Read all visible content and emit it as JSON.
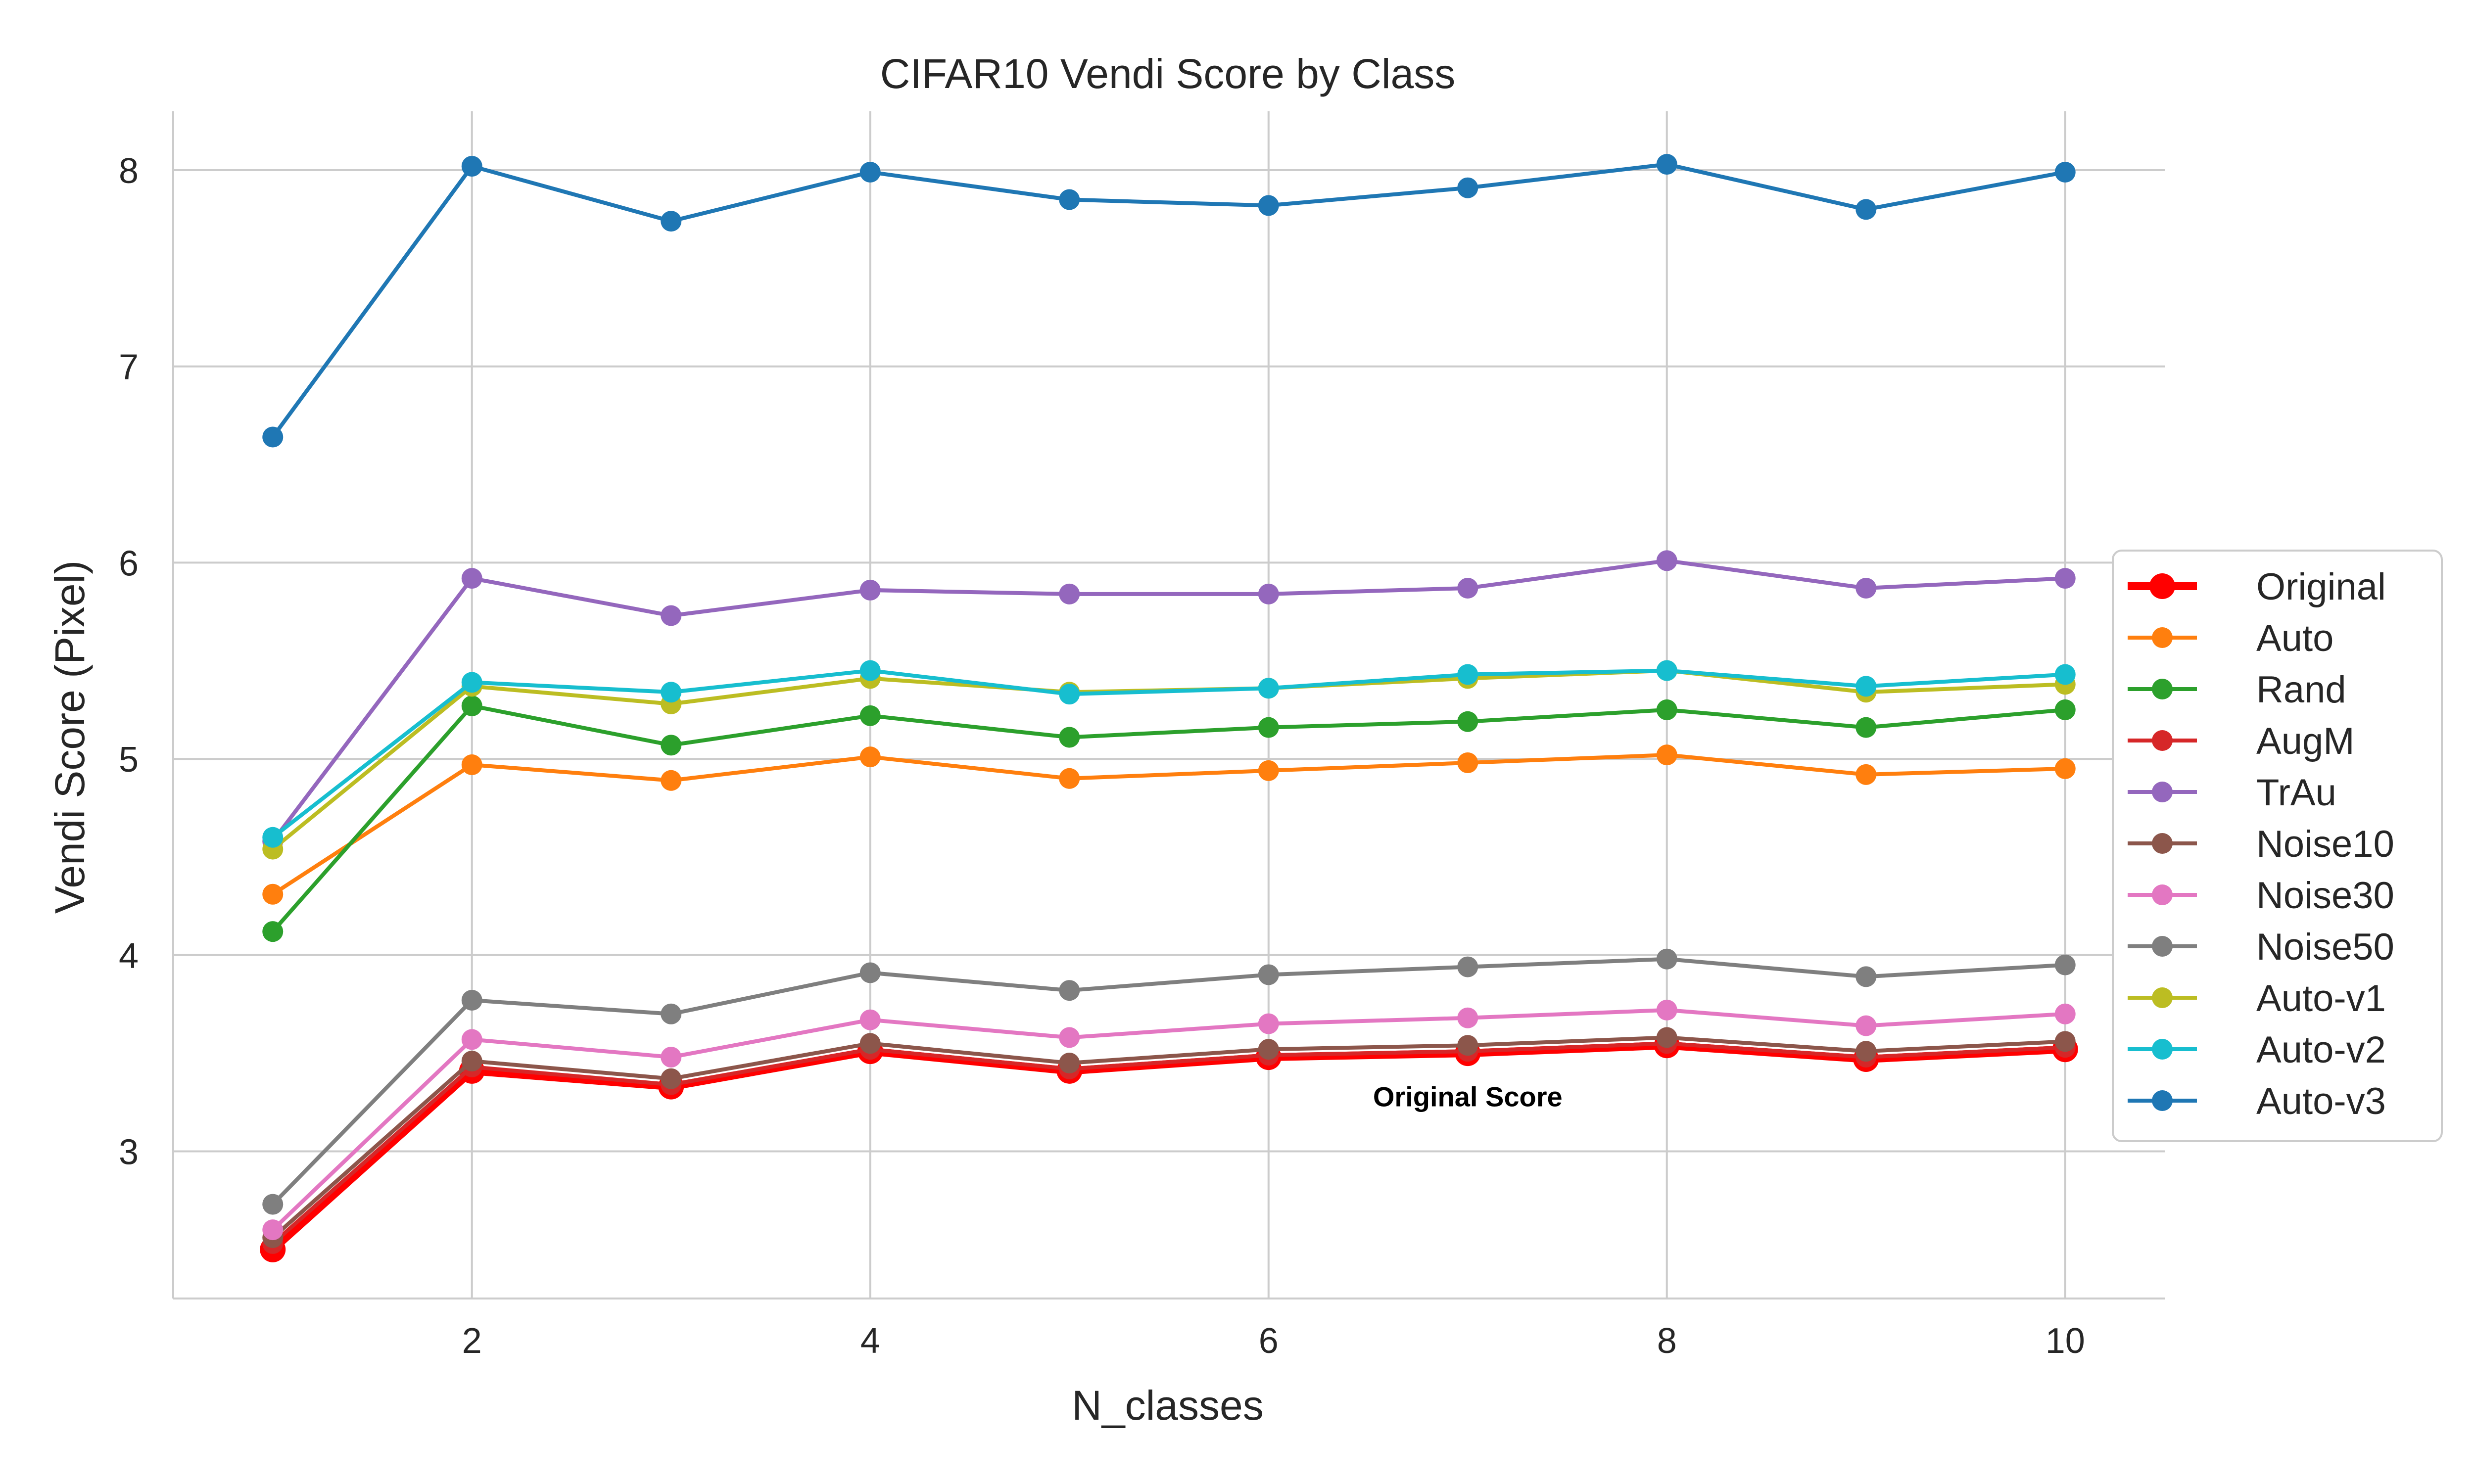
{
  "chart_data": {
    "type": "line",
    "title": "CIFAR10 Vendi Score by Class",
    "xlabel": "N_classes",
    "ylabel": "Vendi Score (Pixel)",
    "xlim": [
      0.5,
      10.5
    ],
    "ylim": [
      2.25,
      8.3
    ],
    "xticks": [
      2,
      4,
      6,
      8,
      10
    ],
    "yticks": [
      3,
      4,
      5,
      6,
      7,
      8
    ],
    "grid": true,
    "legend_position": "center-right",
    "x": [
      1,
      2,
      3,
      4,
      5,
      6,
      7,
      8,
      9,
      10
    ],
    "series": [
      {
        "name": "Original",
        "color": "#ff0000",
        "values": [
          2.5,
          3.41,
          3.33,
          3.51,
          3.41,
          3.48,
          3.5,
          3.54,
          3.47,
          3.52
        ]
      },
      {
        "name": "Auto",
        "color": "#ff7f0e",
        "values": [
          4.31,
          4.97,
          4.89,
          5.01,
          4.9,
          4.94,
          4.98,
          5.02,
          4.92,
          4.95
        ]
      },
      {
        "name": "Rand",
        "color": "#2ca02c",
        "values": [
          4.12,
          5.27,
          5.07,
          5.22,
          5.11,
          5.16,
          5.19,
          5.25,
          5.16,
          5.25
        ]
      },
      {
        "name": "AugM",
        "color": "#d62728",
        "values": [
          2.53,
          3.43,
          3.34,
          3.52,
          3.42,
          3.49,
          3.51,
          3.55,
          3.48,
          3.53
        ]
      },
      {
        "name": "TrAu",
        "color": "#9467bd",
        "values": [
          4.58,
          5.92,
          5.73,
          5.86,
          5.84,
          5.84,
          5.87,
          6.01,
          5.87,
          5.92
        ]
      },
      {
        "name": "Noise10",
        "color": "#8c564b",
        "values": [
          2.56,
          3.46,
          3.37,
          3.55,
          3.45,
          3.52,
          3.54,
          3.58,
          3.51,
          3.56
        ]
      },
      {
        "name": "Noise30",
        "color": "#e377c2",
        "values": [
          2.6,
          3.57,
          3.48,
          3.67,
          3.58,
          3.65,
          3.68,
          3.72,
          3.64,
          3.7
        ]
      },
      {
        "name": "Noise50",
        "color": "#7f7f7f",
        "values": [
          2.73,
          3.77,
          3.7,
          3.91,
          3.82,
          3.9,
          3.94,
          3.98,
          3.89,
          3.95
        ]
      },
      {
        "name": "Auto-v1",
        "color": "#bcbd22",
        "values": [
          4.54,
          5.37,
          5.28,
          5.41,
          5.34,
          5.36,
          5.41,
          5.45,
          5.34,
          5.38
        ]
      },
      {
        "name": "Auto-v2",
        "color": "#17becf",
        "values": [
          4.6,
          5.39,
          5.34,
          5.45,
          5.33,
          5.36,
          5.43,
          5.45,
          5.37,
          5.43
        ]
      },
      {
        "name": "Auto-v3",
        "color": "#1f77b4",
        "values": [
          6.64,
          8.02,
          7.74,
          7.99,
          7.85,
          7.82,
          7.91,
          8.03,
          7.8,
          7.99
        ]
      }
    ],
    "annotations": [
      {
        "text": "Original Score",
        "x": 7,
        "y": 3.28
      }
    ]
  }
}
